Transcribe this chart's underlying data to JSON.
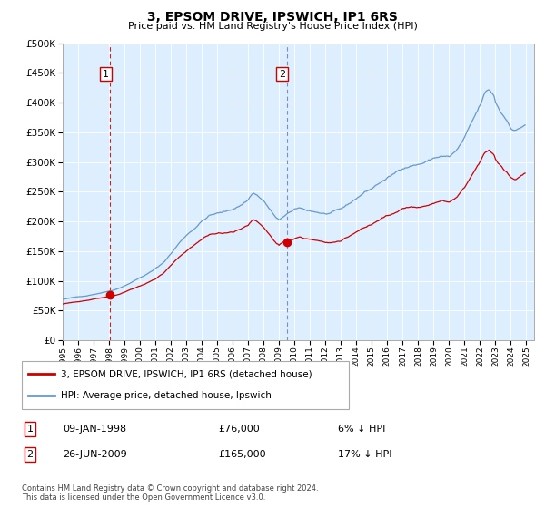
{
  "title": "3, EPSOM DRIVE, IPSWICH, IP1 6RS",
  "subtitle": "Price paid vs. HM Land Registry's House Price Index (HPI)",
  "legend_line1": "3, EPSOM DRIVE, IPSWICH, IP1 6RS (detached house)",
  "legend_line2": "HPI: Average price, detached house, Ipswich",
  "transaction1_label": "1",
  "transaction1_date": "09-JAN-1998",
  "transaction1_price": "£76,000",
  "transaction1_hpi": "6% ↓ HPI",
  "transaction1_x": 1998.04,
  "transaction1_y": 76000,
  "transaction2_label": "2",
  "transaction2_date": "26-JUN-2009",
  "transaction2_price": "£165,000",
  "transaction2_hpi": "17% ↓ HPI",
  "transaction2_x": 2009.49,
  "transaction2_y": 165000,
  "footer": "Contains HM Land Registry data © Crown copyright and database right 2024.\nThis data is licensed under the Open Government Licence v3.0.",
  "hpi_color": "#6699cc",
  "price_color": "#cc0000",
  "plot_bg": "#ddeeff",
  "ylim": [
    0,
    500000
  ],
  "xlim_start": 1995.0,
  "xlim_end": 2025.5,
  "yticks": [
    0,
    50000,
    100000,
    150000,
    200000,
    250000,
    300000,
    350000,
    400000,
    450000,
    500000
  ],
  "xticks": [
    1995,
    1996,
    1997,
    1998,
    1999,
    2000,
    2001,
    2002,
    2003,
    2004,
    2005,
    2006,
    2007,
    2008,
    2009,
    2010,
    2011,
    2012,
    2013,
    2014,
    2015,
    2016,
    2017,
    2018,
    2019,
    2020,
    2021,
    2022,
    2023,
    2024,
    2025
  ]
}
